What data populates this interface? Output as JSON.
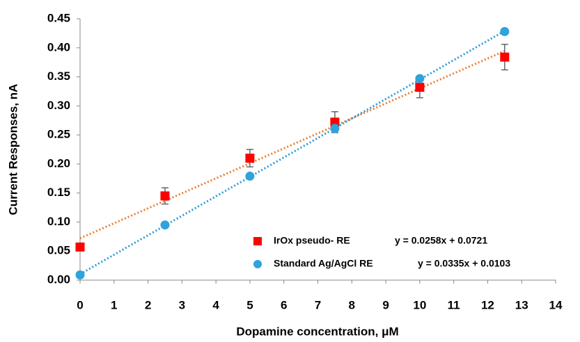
{
  "chart_data": {
    "type": "scatter",
    "x_label": "Dopamine concentration, μM",
    "y_label": "Current Responses, nA",
    "x": [
      0,
      2.5,
      5,
      7.5,
      10,
      12.5
    ],
    "series": [
      {
        "name": "IrOx pseudo- RE",
        "color": "#ff0000",
        "marker": "square",
        "values": [
          0.057,
          0.145,
          0.21,
          0.272,
          0.332,
          0.384
        ],
        "errors": [
          0.003,
          0.014,
          0.015,
          0.018,
          0.018,
          0.022
        ],
        "trendline": {
          "label": "y = 0.0258x + 0.0721",
          "slope": 0.0258,
          "intercept": 0.0721,
          "color": "#ed7d31"
        }
      },
      {
        "name": "Standard Ag/AgCl RE",
        "color": "#2ea3dc",
        "marker": "circle",
        "values": [
          0.009,
          0.095,
          0.179,
          0.261,
          0.347,
          0.428
        ],
        "errors": [
          0.002,
          0.002,
          0.003,
          0.007,
          0.004,
          0.003
        ],
        "trendline": {
          "label": "y = 0.0335x + 0.0103",
          "slope": 0.0335,
          "intercept": 0.0103,
          "color": "#2e9bd6"
        }
      }
    ],
    "xlim": [
      0,
      14
    ],
    "xticks": [
      0,
      1,
      2,
      3,
      4,
      5,
      6,
      7,
      8,
      9,
      10,
      11,
      12,
      13,
      14
    ],
    "ylim": [
      0,
      0.45
    ],
    "yticks": [
      {
        "value": 0,
        "label": "0.00"
      },
      {
        "value": 0.05,
        "label": "0.05"
      },
      {
        "value": 0.1,
        "label": "0.10"
      },
      {
        "value": 0.15,
        "label": "0.15"
      },
      {
        "value": 0.2,
        "label": "0.20"
      },
      {
        "value": 0.25,
        "label": "0.25"
      },
      {
        "value": 0.3,
        "label": "0.30"
      },
      {
        "value": 0.35,
        "label": "0.35"
      },
      {
        "value": 0.4,
        "label": "0.40"
      },
      {
        "value": 0.45,
        "label": "0.45"
      }
    ],
    "grid": false,
    "legend": "lower right"
  }
}
